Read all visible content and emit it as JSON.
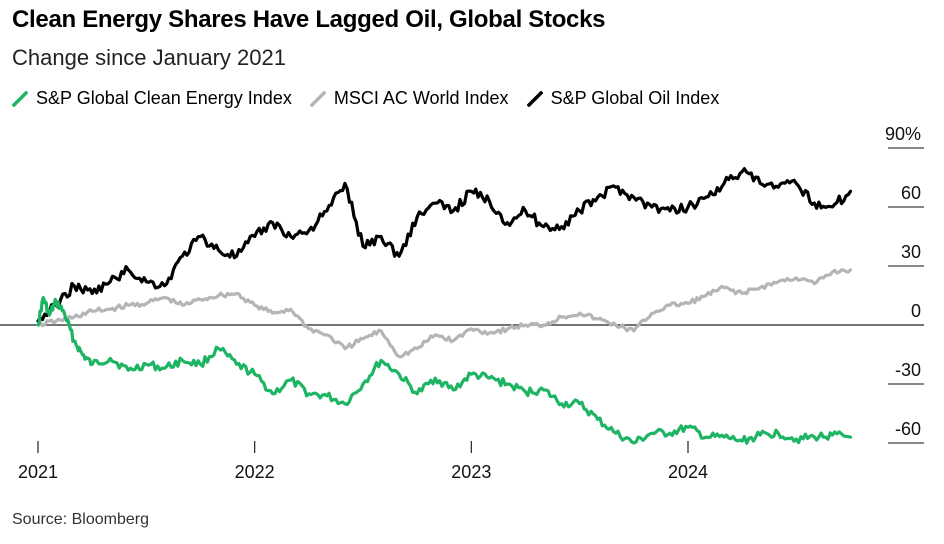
{
  "title": "Clean Energy Shares Have Lagged Oil, Global Stocks",
  "subtitle": "Change since January 2021",
  "source": "Source: Bloomberg",
  "chart_data": {
    "type": "line",
    "x_range": [
      "2021-01",
      "2024-10"
    ],
    "x_ticks": [
      "2021",
      "2022",
      "2023",
      "2024"
    ],
    "y_ticks": [
      "90%",
      "60",
      "30",
      "0",
      "-30",
      "-60"
    ],
    "y_tick_values": [
      90,
      60,
      30,
      0,
      -30,
      -60
    ],
    "ylim": [
      -70,
      90
    ],
    "zero_line": true,
    "legend_position": "top-left",
    "series": [
      {
        "name": "S&P Global Clean Energy Index",
        "color": "#1db464",
        "points": [
          [
            "2021-01",
            0
          ],
          [
            "2021-01-10",
            14
          ],
          [
            "2021-01-20",
            5
          ],
          [
            "2021-02",
            12
          ],
          [
            "2021-02-15",
            6
          ],
          [
            "2021-03",
            -8
          ],
          [
            "2021-03-15",
            -15
          ],
          [
            "2021-04",
            -20
          ],
          [
            "2021-05",
            -17
          ],
          [
            "2021-06",
            -23
          ],
          [
            "2021-07",
            -20
          ],
          [
            "2021-08",
            -22
          ],
          [
            "2021-09",
            -18
          ],
          [
            "2021-10",
            -20
          ],
          [
            "2021-11",
            -12
          ],
          [
            "2021-12",
            -20
          ],
          [
            "2022-01",
            -25
          ],
          [
            "2022-02",
            -35
          ],
          [
            "2022-03",
            -28
          ],
          [
            "2022-04",
            -35
          ],
          [
            "2022-05",
            -36
          ],
          [
            "2022-06",
            -40
          ],
          [
            "2022-07",
            -30
          ],
          [
            "2022-08",
            -18
          ],
          [
            "2022-09",
            -25
          ],
          [
            "2022-10",
            -35
          ],
          [
            "2022-11",
            -27
          ],
          [
            "2022-12",
            -33
          ],
          [
            "2023-01",
            -25
          ],
          [
            "2023-02",
            -27
          ],
          [
            "2023-03",
            -30
          ],
          [
            "2023-04",
            -34
          ],
          [
            "2023-05",
            -33
          ],
          [
            "2023-06",
            -40
          ],
          [
            "2023-07",
            -40
          ],
          [
            "2023-08",
            -48
          ],
          [
            "2023-09",
            -55
          ],
          [
            "2023-10",
            -60
          ],
          [
            "2023-11",
            -55
          ],
          [
            "2023-12",
            -55
          ],
          [
            "2024-01",
            -52
          ],
          [
            "2024-02",
            -57
          ],
          [
            "2024-03",
            -57
          ],
          [
            "2024-04",
            -59
          ],
          [
            "2024-05",
            -56
          ],
          [
            "2024-06",
            -55
          ],
          [
            "2024-07",
            -58
          ],
          [
            "2024-08",
            -57
          ],
          [
            "2024-09",
            -56
          ],
          [
            "2024-10",
            -57
          ]
        ]
      },
      {
        "name": "MSCI AC World Index",
        "color": "#b5b5b5",
        "points": [
          [
            "2021-01",
            0
          ],
          [
            "2021-02",
            2
          ],
          [
            "2021-03",
            4
          ],
          [
            "2021-04",
            7
          ],
          [
            "2021-05",
            8
          ],
          [
            "2021-06",
            10
          ],
          [
            "2021-07",
            11
          ],
          [
            "2021-08",
            14
          ],
          [
            "2021-09",
            10
          ],
          [
            "2021-10",
            13
          ],
          [
            "2021-11",
            15
          ],
          [
            "2021-12",
            16
          ],
          [
            "2022-01",
            10
          ],
          [
            "2022-02",
            6
          ],
          [
            "2022-03",
            8
          ],
          [
            "2022-04",
            -2
          ],
          [
            "2022-05",
            -5
          ],
          [
            "2022-06",
            -12
          ],
          [
            "2022-07",
            -7
          ],
          [
            "2022-08",
            -3
          ],
          [
            "2022-09",
            -16
          ],
          [
            "2022-10",
            -12
          ],
          [
            "2022-11",
            -5
          ],
          [
            "2022-12",
            -8
          ],
          [
            "2023-01",
            -2
          ],
          [
            "2023-02",
            -4
          ],
          [
            "2023-03",
            -2
          ],
          [
            "2023-04",
            0
          ],
          [
            "2023-05",
            0
          ],
          [
            "2023-06",
            4
          ],
          [
            "2023-07",
            6
          ],
          [
            "2023-08",
            3
          ],
          [
            "2023-09",
            0
          ],
          [
            "2023-10",
            -3
          ],
          [
            "2023-11",
            6
          ],
          [
            "2023-12",
            10
          ],
          [
            "2024-01",
            11
          ],
          [
            "2024-02",
            15
          ],
          [
            "2024-03",
            19
          ],
          [
            "2024-04",
            16
          ],
          [
            "2024-05",
            19
          ],
          [
            "2024-06",
            22
          ],
          [
            "2024-07",
            24
          ],
          [
            "2024-08",
            21
          ],
          [
            "2024-09",
            27
          ],
          [
            "2024-10",
            28
          ]
        ]
      },
      {
        "name": "S&P Global Oil Index",
        "color": "#000000",
        "points": [
          [
            "2021-01",
            2
          ],
          [
            "2021-02",
            10
          ],
          [
            "2021-03",
            20
          ],
          [
            "2021-04",
            16
          ],
          [
            "2021-05",
            22
          ],
          [
            "2021-06",
            28
          ],
          [
            "2021-07",
            22
          ],
          [
            "2021-08",
            20
          ],
          [
            "2021-09",
            35
          ],
          [
            "2021-10",
            45
          ],
          [
            "2021-11",
            38
          ],
          [
            "2021-12",
            35
          ],
          [
            "2022-01",
            45
          ],
          [
            "2022-02",
            52
          ],
          [
            "2022-03",
            45
          ],
          [
            "2022-04",
            48
          ],
          [
            "2022-05",
            58
          ],
          [
            "2022-06",
            72
          ],
          [
            "2022-07",
            40
          ],
          [
            "2022-08",
            45
          ],
          [
            "2022-09",
            35
          ],
          [
            "2022-10",
            55
          ],
          [
            "2022-11",
            62
          ],
          [
            "2022-12",
            58
          ],
          [
            "2023-01",
            68
          ],
          [
            "2023-02",
            63
          ],
          [
            "2023-03",
            52
          ],
          [
            "2023-04",
            58
          ],
          [
            "2023-05",
            50
          ],
          [
            "2023-06",
            50
          ],
          [
            "2023-07",
            58
          ],
          [
            "2023-08",
            65
          ],
          [
            "2023-09",
            70
          ],
          [
            "2023-10",
            65
          ],
          [
            "2023-11",
            60
          ],
          [
            "2023-12",
            58
          ],
          [
            "2024-01",
            60
          ],
          [
            "2024-02",
            65
          ],
          [
            "2024-03",
            72
          ],
          [
            "2024-04",
            78
          ],
          [
            "2024-05",
            72
          ],
          [
            "2024-06",
            70
          ],
          [
            "2024-07",
            72
          ],
          [
            "2024-08",
            62
          ],
          [
            "2024-09",
            60
          ],
          [
            "2024-10",
            68
          ]
        ]
      }
    ]
  }
}
